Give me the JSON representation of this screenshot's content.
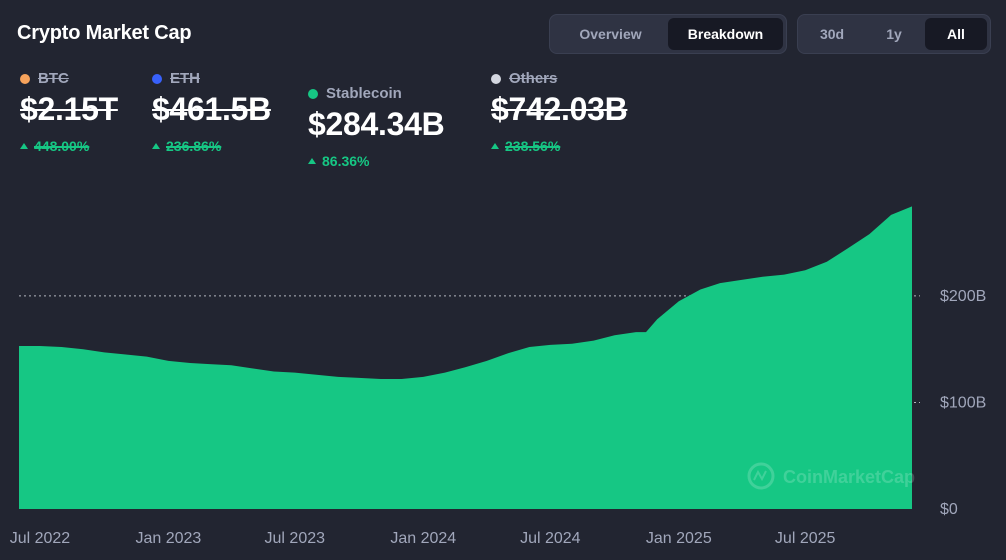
{
  "header": {
    "title": "Crypto Market Cap"
  },
  "view_tabs": [
    {
      "label": "Overview",
      "active": false
    },
    {
      "label": "Breakdown",
      "active": true
    }
  ],
  "range_tabs": [
    {
      "label": "30d",
      "active": false
    },
    {
      "label": "1y",
      "active": false
    },
    {
      "label": "All",
      "active": true
    }
  ],
  "legend": [
    {
      "name": "BTC",
      "value": "$2.15T",
      "change": "448.00%",
      "color": "#f7a35c",
      "enabled": false
    },
    {
      "name": "ETH",
      "value": "$461.5B",
      "change": "236.86%",
      "color": "#3861fb",
      "enabled": false
    },
    {
      "name": "Stablecoin",
      "value": "$284.34B",
      "change": "86.36%",
      "color": "#16c784",
      "enabled": true
    },
    {
      "name": "Others",
      "value": "$742.03B",
      "change": "238.56%",
      "color": "#d4d7e0",
      "enabled": false
    }
  ],
  "watermark": "CoinMarketCap",
  "chart_data": {
    "type": "area",
    "series": [
      {
        "name": "Stablecoin",
        "color": "#16c784",
        "x": [
          "2022-06-01",
          "2022-07-01",
          "2022-08-01",
          "2022-09-01",
          "2022-10-01",
          "2022-11-01",
          "2022-12-01",
          "2023-01-01",
          "2023-02-01",
          "2023-03-01",
          "2023-04-01",
          "2023-05-01",
          "2023-06-01",
          "2023-07-01",
          "2023-08-01",
          "2023-09-01",
          "2023-10-01",
          "2023-11-01",
          "2023-12-01",
          "2024-01-01",
          "2024-02-01",
          "2024-03-01",
          "2024-04-01",
          "2024-05-01",
          "2024-06-01",
          "2024-07-01",
          "2024-08-01",
          "2024-09-01",
          "2024-10-01",
          "2024-11-01",
          "2024-11-15",
          "2024-12-01",
          "2025-01-01",
          "2025-02-01",
          "2025-03-01",
          "2025-04-01",
          "2025-05-01",
          "2025-06-01",
          "2025-07-01",
          "2025-08-01",
          "2025-09-01",
          "2025-10-01",
          "2025-11-01",
          "2025-12-01"
        ],
        "values": [
          153,
          153,
          152,
          150,
          147,
          145,
          143,
          139,
          137,
          136,
          135,
          132,
          129,
          128,
          126,
          124,
          123,
          122,
          122,
          124,
          128,
          133,
          139,
          146,
          152,
          154,
          155,
          158,
          163,
          166,
          166,
          178,
          195,
          206,
          212,
          215,
          218,
          220,
          224,
          232,
          245,
          258,
          276,
          284
        ]
      }
    ],
    "x_ticks": [
      "Jul 2022",
      "Jan 2023",
      "Jul 2023",
      "Jan 2024",
      "Jul 2024",
      "Jan 2025",
      "Jul 2025"
    ],
    "x_tick_dates": [
      "2022-07-01",
      "2023-01-01",
      "2023-07-01",
      "2024-01-01",
      "2024-07-01",
      "2025-01-01",
      "2025-07-01"
    ],
    "y_ticks": [
      "$0",
      "$100B",
      "$200B"
    ],
    "y_tick_values": [
      0,
      100,
      200
    ],
    "ylim": [
      0,
      290
    ],
    "grid": true,
    "y_axis_side": "right"
  }
}
